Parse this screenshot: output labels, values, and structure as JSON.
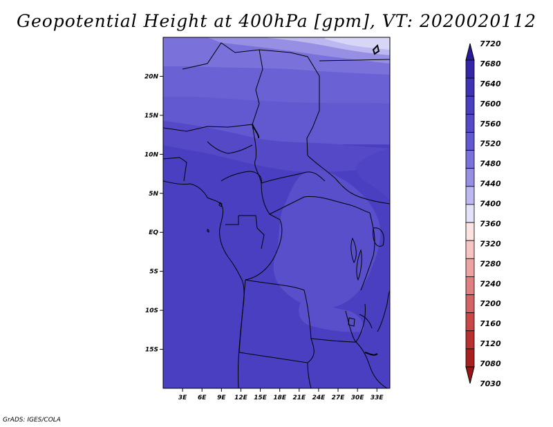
{
  "title": "Geopotential Height at 400hPa [gpm], VT: 2020020112",
  "credit": "GrADS: IGES/COLA",
  "map": {
    "lat_labels": [
      "20N",
      "15N",
      "10N",
      "5N",
      "EQ",
      "5S",
      "10S",
      "15S"
    ],
    "lon_labels": [
      "3E",
      "6E",
      "9E",
      "12E",
      "15E",
      "18E",
      "21E",
      "24E",
      "27E",
      "30E",
      "33E"
    ],
    "lat_values": [
      20,
      15,
      10,
      5,
      0,
      -5,
      -10,
      -15
    ],
    "lon_values": [
      3,
      6,
      9,
      12,
      15,
      18,
      21,
      24,
      27,
      30,
      33
    ],
    "extent": {
      "lon_min": 0,
      "lon_max": 35,
      "lat_min": -20,
      "lat_max": 25
    },
    "field": "Geopotential Height",
    "level": "400hPa",
    "units": "gpm"
  },
  "colorbar": {
    "levels": [
      "7720",
      "7680",
      "7640",
      "7600",
      "7560",
      "7520",
      "7480",
      "7440",
      "7400",
      "7360",
      "7320",
      "7280",
      "7240",
      "7200",
      "7160",
      "7120",
      "7080",
      "7030"
    ],
    "colors": [
      "#2a1b9b",
      "#3526a8",
      "#3f33b5",
      "#4a3fc0",
      "#5549c8",
      "#6258d0",
      "#7a71db",
      "#968fe4",
      "#bdb8f0",
      "#e3e2f8",
      "#fde2e2",
      "#f7c4c4",
      "#eea3a3",
      "#e07f7f",
      "#d46464",
      "#c84848",
      "#b83030",
      "#a82020",
      "#981515"
    ]
  }
}
